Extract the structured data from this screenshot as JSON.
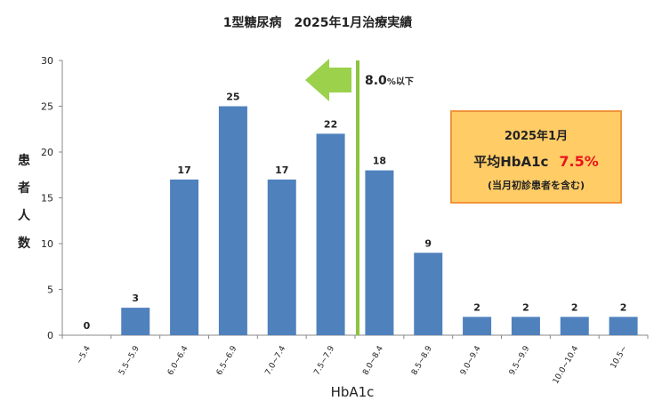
{
  "chart_data": {
    "type": "bar",
    "title": "1型糖尿病　2025年1月治療実績",
    "xlabel": "HbA1c",
    "ylabel": "患者人数",
    "categories": [
      "~5.4",
      "5.5~5.9",
      "6.0~6.4",
      "6.5~6.9",
      "7.0~7.4",
      "7.5~7.9",
      "8.0~8.4",
      "8.5~8.9",
      "9.0~9.4",
      "9.5~9.9",
      "10.0~10.4",
      "10.5~"
    ],
    "values": [
      0,
      3,
      17,
      25,
      17,
      22,
      18,
      9,
      2,
      2,
      2,
      2
    ],
    "ylim": [
      0,
      30
    ],
    "yticks": [
      0,
      5,
      10,
      15,
      20,
      25,
      30
    ],
    "grid": false,
    "bar_color": "#4f81bd",
    "threshold": {
      "label_value": "8.0",
      "label_suffix": "%以下",
      "line_color": "#8dc43f",
      "arrow_color": "#9bd14b"
    },
    "annotation": {
      "line1": "2025年1月",
      "line2_prefix": "平均HbA1c",
      "line2_value": "7.5%",
      "line3": "(当月初診患者を含む)",
      "fill_color": "#ffcc66",
      "border_color": "#f0943a",
      "value_color": "#e8141b"
    }
  }
}
